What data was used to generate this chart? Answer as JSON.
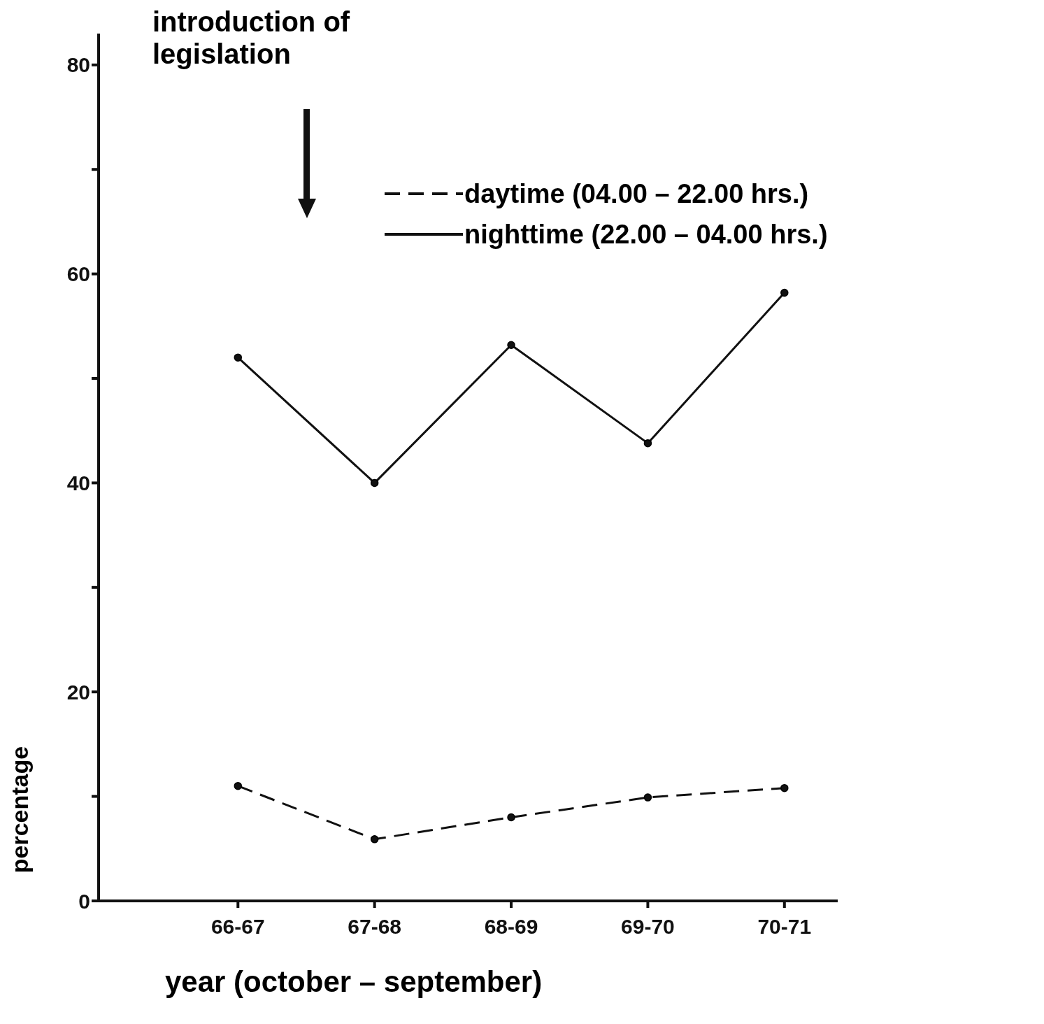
{
  "chart_data": {
    "type": "line",
    "xlabel": "year (october – september)",
    "ylabel": "percentage",
    "annotations": [
      "introduction of legislation"
    ],
    "categories": [
      "66-67",
      "67-68",
      "68-69",
      "69-70",
      "70-71"
    ],
    "series": [
      {
        "name": "daytime (04.00 – 22.00 hrs.)",
        "color": "#111111",
        "line_style": "dashed",
        "values": [
          11.0,
          5.9,
          8.0,
          9.9,
          10.8
        ]
      },
      {
        "name": "nighttime (22.00 – 04.00 hrs.)",
        "color": "#111111",
        "line_style": "solid",
        "values": [
          52.0,
          40.0,
          53.2,
          43.8,
          58.2
        ]
      }
    ],
    "ylim": [
      0,
      83
    ],
    "yticks": [
      0,
      {
        "value": 10,
        "label": null
      },
      20,
      {
        "value": 30,
        "label": null
      },
      40,
      {
        "value": 50,
        "label": null
      },
      60,
      {
        "value": 70,
        "label": null
      },
      80
    ],
    "grid": false,
    "legend": "top right",
    "marker": "circle"
  }
}
